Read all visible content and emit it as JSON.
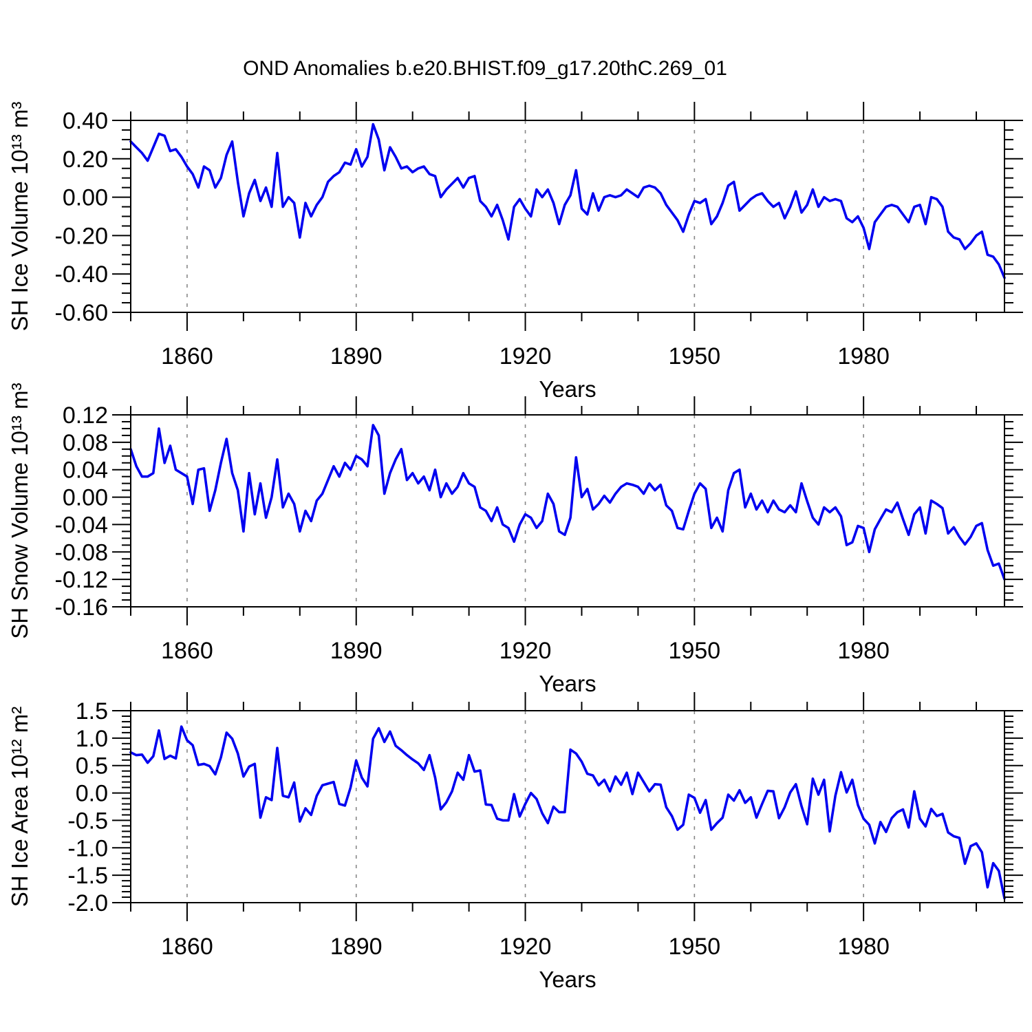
{
  "title": "OND Anomalies b.e20.BHIST.f09_g17.20thC.269_01",
  "style": {
    "line_color": "#0000f0",
    "grid_color": "#878787",
    "frame_color": "#000000",
    "background": "#ffffff",
    "text_color": "#000000"
  },
  "axis": {
    "x_label": "Years",
    "x_range": [
      1850,
      2005
    ],
    "x_major_ticks": [
      1860,
      1890,
      1920,
      1950,
      1980
    ],
    "x_minor_step": 10,
    "vertical_gridlines": true
  },
  "chart_data": [
    {
      "name": "sh-ice-volume",
      "type": "line",
      "ylabel": "SH Ice Volume 10¹³ m³",
      "ylim": [
        -0.6,
        0.4
      ],
      "y_major_ticks": [
        0.4,
        0.2,
        0.0,
        -0.2,
        -0.4,
        -0.6
      ],
      "y_tick_labels": [
        "0.40",
        "0.20",
        "0.00",
        "-0.20",
        "-0.40",
        "-0.60"
      ],
      "y_minor_step": 0.05,
      "x_start": 1850,
      "x_end": 2005,
      "values": [
        0.29,
        0.26,
        0.23,
        0.19,
        0.26,
        0.33,
        0.32,
        0.24,
        0.25,
        0.21,
        0.16,
        0.12,
        0.05,
        0.16,
        0.14,
        0.05,
        0.1,
        0.22,
        0.29,
        0.08,
        -0.1,
        0.02,
        0.09,
        -0.02,
        0.05,
        -0.05,
        0.23,
        -0.05,
        0.0,
        -0.03,
        -0.21,
        -0.03,
        -0.1,
        -0.04,
        0.0,
        0.08,
        0.11,
        0.13,
        0.18,
        0.17,
        0.25,
        0.16,
        0.21,
        0.38,
        0.3,
        0.14,
        0.26,
        0.21,
        0.15,
        0.16,
        0.13,
        0.15,
        0.16,
        0.12,
        0.11,
        0.0,
        0.04,
        0.07,
        0.1,
        0.05,
        0.1,
        0.11,
        -0.02,
        -0.05,
        -0.1,
        -0.04,
        -0.12,
        -0.22,
        -0.05,
        -0.01,
        -0.06,
        -0.1,
        0.04,
        0.0,
        0.04,
        -0.03,
        -0.14,
        -0.04,
        0.01,
        0.14,
        -0.06,
        -0.09,
        0.02,
        -0.07,
        0.0,
        0.01,
        0.0,
        0.01,
        0.04,
        0.02,
        0.0,
        0.05,
        0.06,
        0.05,
        0.02,
        -0.04,
        -0.08,
        -0.12,
        -0.18,
        -0.09,
        -0.02,
        -0.03,
        -0.01,
        -0.14,
        -0.1,
        -0.03,
        0.06,
        0.08,
        -0.07,
        -0.04,
        -0.01,
        0.01,
        0.02,
        -0.02,
        -0.05,
        -0.03,
        -0.11,
        -0.05,
        0.03,
        -0.08,
        -0.04,
        0.04,
        -0.05,
        0.0,
        -0.02,
        -0.01,
        -0.02,
        -0.11,
        -0.13,
        -0.1,
        -0.16,
        -0.27,
        -0.13,
        -0.09,
        -0.05,
        -0.04,
        -0.05,
        -0.09,
        -0.13,
        -0.05,
        -0.04,
        -0.14,
        0.0,
        -0.01,
        -0.05,
        -0.18,
        -0.21,
        -0.22,
        -0.27,
        -0.24,
        -0.2,
        -0.18,
        -0.3,
        -0.31,
        -0.35,
        -0.42
      ]
    },
    {
      "name": "sh-snow-volume",
      "type": "line",
      "ylabel": "SH Snow Volume 10¹³ m³",
      "ylim": [
        -0.16,
        0.12
      ],
      "y_major_ticks": [
        0.12,
        0.08,
        0.04,
        0.0,
        -0.04,
        -0.08,
        -0.12,
        -0.16
      ],
      "y_tick_labels": [
        "0.12",
        "0.08",
        "0.04",
        "0.00",
        "-0.04",
        "-0.08",
        "-0.12",
        "-0.16"
      ],
      "y_minor_step": 0.01,
      "x_start": 1850,
      "x_end": 2005,
      "values": [
        0.07,
        0.045,
        0.03,
        0.03,
        0.035,
        0.1,
        0.05,
        0.075,
        0.04,
        0.035,
        0.03,
        -0.01,
        0.04,
        0.042,
        -0.02,
        0.01,
        0.05,
        0.085,
        0.035,
        0.01,
        -0.05,
        0.035,
        -0.025,
        0.02,
        -0.03,
        0.0,
        0.055,
        -0.015,
        0.005,
        -0.01,
        -0.05,
        -0.02,
        -0.035,
        -0.005,
        0.005,
        0.025,
        0.045,
        0.03,
        0.05,
        0.04,
        0.06,
        0.055,
        0.045,
        0.105,
        0.09,
        0.005,
        0.035,
        0.055,
        0.07,
        0.025,
        0.035,
        0.02,
        0.03,
        0.01,
        0.04,
        0.0,
        0.02,
        0.005,
        0.015,
        0.035,
        0.02,
        0.015,
        -0.015,
        -0.02,
        -0.035,
        -0.015,
        -0.04,
        -0.045,
        -0.065,
        -0.04,
        -0.025,
        -0.03,
        -0.045,
        -0.035,
        0.005,
        -0.01,
        -0.05,
        -0.055,
        -0.03,
        0.058,
        0.0,
        0.012,
        -0.018,
        -0.01,
        0.002,
        -0.008,
        0.005,
        0.015,
        0.02,
        0.018,
        0.015,
        0.005,
        0.02,
        0.01,
        0.018,
        -0.012,
        -0.02,
        -0.045,
        -0.047,
        -0.02,
        0.005,
        0.02,
        0.012,
        -0.045,
        -0.03,
        -0.05,
        0.01,
        0.035,
        0.04,
        -0.015,
        0.005,
        -0.018,
        -0.005,
        -0.022,
        -0.005,
        -0.018,
        -0.022,
        -0.012,
        -0.022,
        0.02,
        -0.006,
        -0.03,
        -0.04,
        -0.015,
        -0.022,
        -0.015,
        -0.028,
        -0.07,
        -0.066,
        -0.042,
        -0.045,
        -0.08,
        -0.047,
        -0.032,
        -0.018,
        -0.022,
        -0.008,
        -0.032,
        -0.055,
        -0.025,
        -0.015,
        -0.053,
        -0.005,
        -0.01,
        -0.016,
        -0.053,
        -0.044,
        -0.058,
        -0.069,
        -0.058,
        -0.042,
        -0.038,
        -0.077,
        -0.1,
        -0.097,
        -0.12
      ]
    },
    {
      "name": "sh-ice-area",
      "type": "line",
      "ylabel": "SH Ice Area 10¹² m²",
      "ylim": [
        -2.0,
        1.5
      ],
      "y_major_ticks": [
        1.5,
        1.0,
        0.5,
        0.0,
        -0.5,
        -1.0,
        -1.5,
        -2.0
      ],
      "y_tick_labels": [
        "1.5",
        "1.0",
        "0.5",
        "0.0",
        "-0.5",
        "-1.0",
        "-1.5",
        "-2.0"
      ],
      "y_minor_step": 0.1,
      "x_start": 1850,
      "x_end": 2005,
      "values": [
        0.74,
        0.69,
        0.7,
        0.55,
        0.67,
        1.14,
        0.62,
        0.68,
        0.63,
        1.21,
        0.96,
        0.87,
        0.51,
        0.53,
        0.49,
        0.34,
        0.65,
        1.1,
        0.99,
        0.72,
        0.3,
        0.48,
        0.53,
        -0.45,
        -0.08,
        -0.13,
        0.82,
        -0.05,
        -0.08,
        0.19,
        -0.52,
        -0.28,
        -0.4,
        -0.05,
        0.14,
        0.17,
        0.2,
        -0.2,
        -0.23,
        0.1,
        0.59,
        0.28,
        0.12,
        0.99,
        1.18,
        0.93,
        1.12,
        0.86,
        0.78,
        0.69,
        0.61,
        0.54,
        0.42,
        0.69,
        0.28,
        -0.3,
        -0.17,
        0.03,
        0.37,
        0.24,
        0.69,
        0.39,
        0.41,
        -0.21,
        -0.22,
        -0.47,
        -0.5,
        -0.5,
        -0.02,
        -0.43,
        -0.2,
        0.0,
        -0.11,
        -0.37,
        -0.55,
        -0.25,
        -0.35,
        -0.35,
        0.79,
        0.72,
        0.57,
        0.35,
        0.32,
        0.14,
        0.24,
        0.03,
        0.3,
        0.15,
        0.37,
        -0.02,
        0.37,
        0.2,
        0.03,
        0.16,
        0.15,
        -0.26,
        -0.42,
        -0.67,
        -0.58,
        -0.03,
        -0.09,
        -0.36,
        -0.13,
        -0.67,
        -0.55,
        -0.45,
        -0.03,
        -0.14,
        0.05,
        -0.18,
        -0.08,
        -0.45,
        -0.2,
        0.04,
        0.03,
        -0.46,
        -0.26,
        0.01,
        0.16,
        -0.24,
        -0.57,
        0.26,
        -0.03,
        0.24,
        -0.7,
        -0.05,
        0.38,
        0.01,
        0.24,
        -0.22,
        -0.47,
        -0.58,
        -0.92,
        -0.53,
        -0.71,
        -0.46,
        -0.35,
        -0.3,
        -0.63,
        0.03,
        -0.47,
        -0.61,
        -0.29,
        -0.42,
        -0.38,
        -0.72,
        -0.79,
        -0.82,
        -1.29,
        -0.97,
        -0.92,
        -1.08,
        -1.72,
        -1.28,
        -1.42,
        -1.92
      ]
    }
  ]
}
